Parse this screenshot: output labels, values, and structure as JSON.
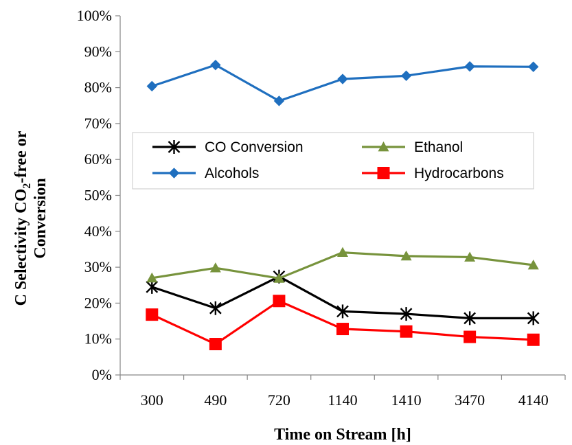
{
  "chart_data": {
    "type": "line",
    "categories": [
      "300",
      "490",
      "720",
      "1140",
      "1410",
      "3470",
      "4140"
    ],
    "xlabel": "Time on Stream [h]",
    "ylabel_lines": [
      "C Selectivity CO",
      "2",
      "-free or",
      "Conversion"
    ],
    "y_ticks": [
      "0%",
      "10%",
      "20%",
      "30%",
      "40%",
      "50%",
      "60%",
      "70%",
      "80%",
      "90%",
      "100%"
    ],
    "ylim": [
      0,
      100
    ],
    "grid": false,
    "legend_placement": "inside-middle",
    "series": [
      {
        "name": "CO Conversion",
        "color": "#000000",
        "marker": "asterisk",
        "values": [
          24.5,
          18.6,
          27.4,
          17.7,
          17.0,
          15.8,
          15.8
        ]
      },
      {
        "name": "Ethanol",
        "color": "#77933C",
        "marker": "triangle",
        "values": [
          27.0,
          29.8,
          26.9,
          34.1,
          33.1,
          32.8,
          30.6
        ]
      },
      {
        "name": "Alcohols",
        "color": "#1F6FBF",
        "marker": "diamond",
        "values": [
          80.4,
          86.3,
          76.3,
          82.4,
          83.3,
          85.9,
          85.8
        ]
      },
      {
        "name": "Hydrocarbons",
        "color": "#FF0000",
        "marker": "square",
        "values": [
          16.8,
          8.6,
          20.6,
          12.8,
          12.1,
          10.6,
          9.8
        ]
      }
    ]
  }
}
